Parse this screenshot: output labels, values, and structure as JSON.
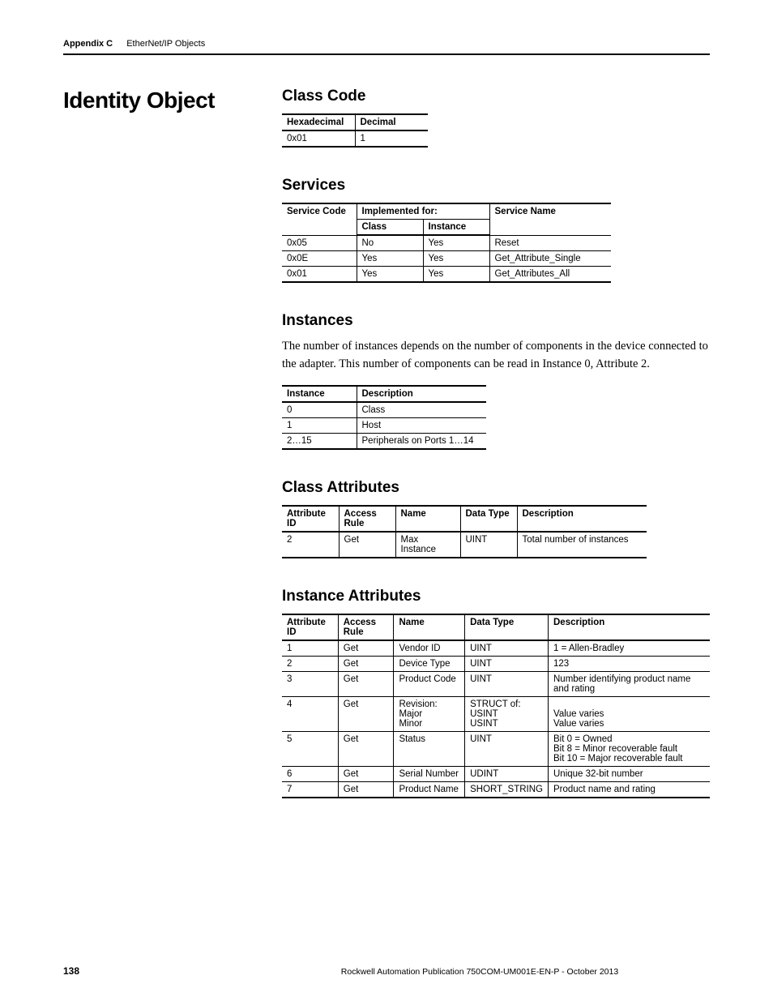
{
  "header": {
    "appendix": "Appendix C",
    "chapter": "EtherNet/IP Objects"
  },
  "section_title": "Identity Object",
  "class_code": {
    "heading": "Class Code",
    "columns": [
      "Hexadecimal",
      "Decimal"
    ],
    "rows": [
      [
        "0x01",
        "1"
      ]
    ],
    "col_widths": [
      "90px",
      "90px"
    ]
  },
  "services": {
    "heading": "Services",
    "group_header": "Implemented for:",
    "columns": [
      "Service Code",
      "Class",
      "Instance",
      "Service Name"
    ],
    "rows": [
      [
        "0x05",
        "No",
        "Yes",
        "Reset"
      ],
      [
        "0x0E",
        "Yes",
        "Yes",
        "Get_Attribute_Single"
      ],
      [
        "0x01",
        "Yes",
        "Yes",
        "Get_Attributes_All"
      ]
    ],
    "col_widths": [
      "92px",
      "82px",
      "82px",
      "150px"
    ]
  },
  "instances": {
    "heading": "Instances",
    "paragraph": "The number of instances depends on the number of components in the device connected to the adapter. This number of components can be read in Instance 0, Attribute 2.",
    "columns": [
      "Instance",
      "Description"
    ],
    "rows": [
      [
        "0",
        "Class"
      ],
      [
        "1",
        "Host"
      ],
      [
        "2…15",
        "Peripherals on Ports 1…14"
      ]
    ],
    "col_widths": [
      "92px",
      "160px"
    ]
  },
  "class_attributes": {
    "heading": "Class Attributes",
    "columns": [
      "Attribute ID",
      "Access Rule",
      "Name",
      "Data Type",
      "Description"
    ],
    "rows": [
      [
        "2",
        "Get",
        "Max Instance",
        "UINT",
        "Total number of instances"
      ]
    ],
    "col_widths": [
      "70px",
      "70px",
      "80px",
      "70px",
      "160px"
    ]
  },
  "instance_attributes": {
    "heading": "Instance Attributes",
    "columns": [
      "Attribute ID",
      "Access Rule",
      "Name",
      "Data Type",
      "Description"
    ],
    "rows": [
      [
        "1",
        "Get",
        "Vendor ID",
        "UINT",
        "1 = Allen-Bradley"
      ],
      [
        "2",
        "Get",
        "Device Type",
        "UINT",
        "123"
      ],
      [
        "3",
        "Get",
        "Product Code",
        "UINT",
        "Number identifying product name and rating"
      ],
      [
        "4",
        "Get",
        "Revision:\n   Major\n   Minor",
        "STRUCT of:\n   USINT\n   USINT",
        "\nValue varies\nValue varies"
      ],
      [
        "5",
        "Get",
        "Status",
        "UINT",
        "Bit 0 = Owned\nBit 8 = Minor recoverable fault\nBit 10 = Major recoverable fault"
      ],
      [
        "6",
        "Get",
        "Serial Number",
        "UDINT",
        "Unique 32-bit number"
      ],
      [
        "7",
        "Get",
        "Product Name",
        "SHORT_STRING",
        "Product name and rating"
      ]
    ],
    "col_widths": [
      "70px",
      "70px",
      "90px",
      "90px",
      "210px"
    ]
  },
  "footer": {
    "page": "138",
    "publication": "Rockwell Automation Publication 750COM-UM001E-EN-P - October 2013"
  }
}
